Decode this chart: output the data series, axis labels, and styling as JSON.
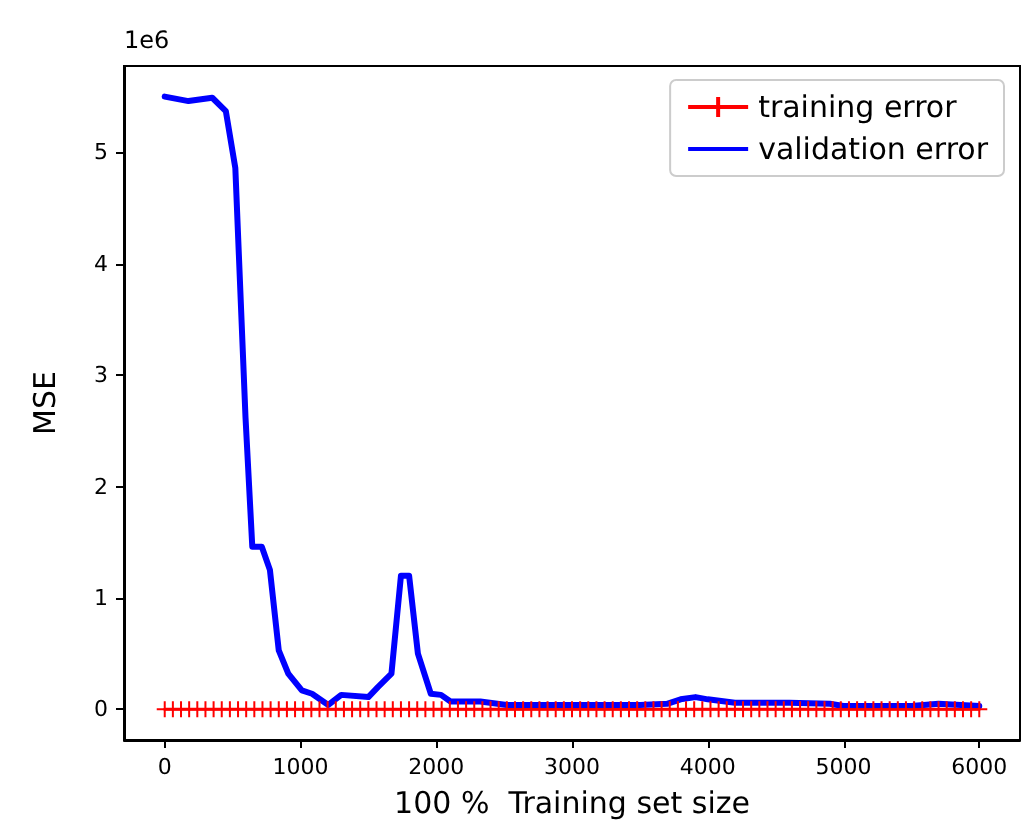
{
  "chart_data": {
    "type": "line",
    "xlabel": "100 %  Training set size",
    "ylabel": "MSE",
    "annotations": [
      "1e6"
    ],
    "xlim": [
      -300,
      6300
    ],
    "xticks": [
      0,
      1000,
      2000,
      3000,
      4000,
      5000,
      6000
    ],
    "ylim": [
      -0.275,
      5.775
    ],
    "yticks": [
      0,
      1,
      2,
      3,
      4,
      5
    ],
    "grid": false,
    "legend": "top right",
    "series": [
      {
        "name": "training error",
        "color": "#ff0000",
        "marker": "cross",
        "x": [
          0,
          60,
          120,
          180,
          240,
          300,
          360,
          420,
          480,
          540,
          600,
          660,
          720,
          780,
          840,
          900,
          960,
          1020,
          1080,
          1140,
          1200,
          1260,
          1320,
          1380,
          1440,
          1500,
          1560,
          1620,
          1680,
          1740,
          1800,
          1860,
          1920,
          1980,
          2040,
          2100,
          2160,
          2220,
          2280,
          2340,
          2400,
          2460,
          2520,
          2580,
          2640,
          2700,
          2760,
          2820,
          2880,
          2940,
          3000,
          3060,
          3120,
          3180,
          3240,
          3300,
          3360,
          3420,
          3480,
          3540,
          3600,
          3660,
          3720,
          3780,
          3840,
          3900,
          3960,
          4020,
          4080,
          4140,
          4200,
          4260,
          4320,
          4380,
          4440,
          4500,
          4560,
          4620,
          4680,
          4740,
          4800,
          4860,
          4920,
          4980,
          5040,
          5100,
          5160,
          5220,
          5280,
          5340,
          5400,
          5460,
          5520,
          5580,
          5640,
          5700,
          5760,
          5820,
          5880,
          5940,
          6000
        ],
        "values": [
          0,
          0,
          0,
          0,
          0,
          0,
          0,
          0,
          0,
          0,
          0,
          0,
          0,
          0,
          0,
          0,
          0,
          0,
          0,
          0,
          0,
          0,
          0,
          0,
          0,
          0,
          0,
          0,
          0,
          0,
          0,
          0,
          0,
          0,
          0,
          0,
          0,
          0,
          0,
          0,
          0,
          0,
          0,
          0,
          0,
          0,
          0,
          0,
          0,
          0,
          0,
          0,
          0,
          0,
          0,
          0,
          0,
          0,
          0,
          0,
          0,
          0,
          0,
          0,
          0,
          0,
          0,
          0,
          0,
          0,
          0,
          0,
          0,
          0,
          0,
          0,
          0,
          0,
          0,
          0,
          0,
          0,
          0,
          0,
          0,
          0,
          0,
          0,
          0,
          0,
          0,
          0,
          0,
          0,
          0,
          0,
          0,
          0,
          0,
          0,
          0
        ]
      },
      {
        "name": "validation error",
        "color": "#0000ff",
        "marker": "none",
        "x": [
          0,
          175,
          350,
          450,
          520,
          595,
          645,
          715,
          775,
          840,
          910,
          1010,
          1085,
          1205,
          1300,
          1500,
          1570,
          1670,
          1740,
          1800,
          1865,
          1960,
          2035,
          2105,
          2325,
          2520,
          3000,
          3500,
          3700,
          3800,
          3910,
          4000,
          4200,
          4600,
          4900,
          5000,
          5500,
          5700,
          6000
        ],
        "values": [
          5.5,
          5.46,
          5.49,
          5.37,
          4.86,
          2.62,
          1.46,
          1.46,
          1.25,
          0.53,
          0.32,
          0.17,
          0.14,
          0.04,
          0.13,
          0.11,
          0.2,
          0.32,
          1.2,
          1.2,
          0.5,
          0.14,
          0.13,
          0.07,
          0.07,
          0.04,
          0.04,
          0.04,
          0.05,
          0.09,
          0.11,
          0.09,
          0.06,
          0.06,
          0.05,
          0.03,
          0.03,
          0.05,
          0.03
        ]
      }
    ]
  }
}
